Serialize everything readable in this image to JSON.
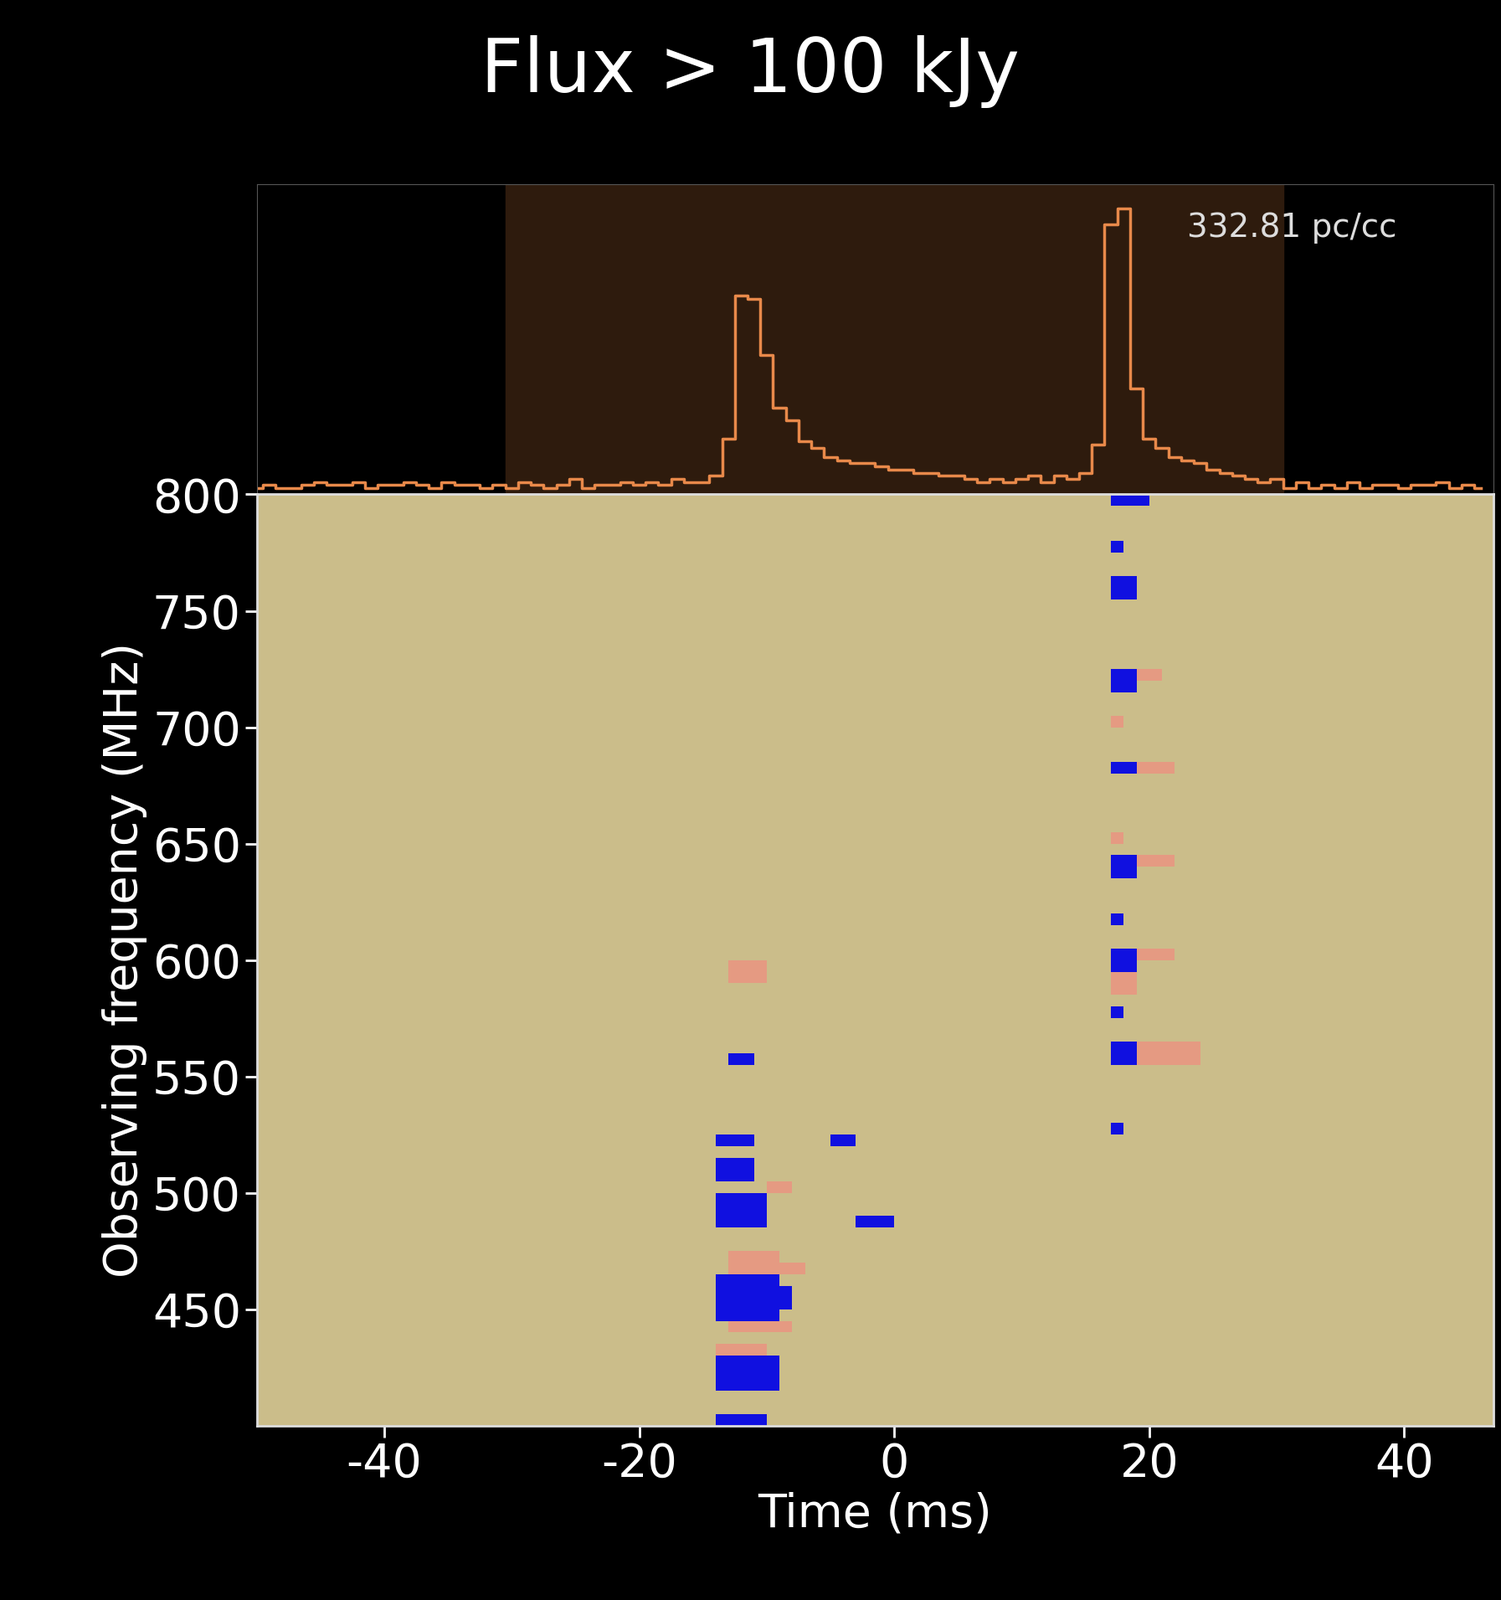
{
  "chart_data": [
    {
      "type": "step",
      "title": "Flux > 100 kJy",
      "annotation": "332.81 pc/cc",
      "x": [
        -50,
        -49,
        -48,
        -47,
        -46,
        -45,
        -44,
        -43,
        -42,
        -41,
        -40,
        -39,
        -38,
        -37,
        -36,
        -35,
        -34,
        -33,
        -32,
        -31,
        -30,
        -29,
        -28,
        -27,
        -26,
        -25,
        -24,
        -23,
        -22,
        -21,
        -20,
        -19,
        -18,
        -17,
        -16,
        -15,
        -14,
        -13,
        -12,
        -11,
        -10,
        -9,
        -8,
        -7,
        -6,
        -5,
        -4,
        -3,
        -2,
        -1,
        0,
        1,
        2,
        3,
        4,
        5,
        6,
        7,
        8,
        9,
        10,
        11,
        12,
        13,
        14,
        15,
        16,
        17,
        18,
        19,
        20,
        21,
        22,
        23,
        24,
        25,
        26,
        27,
        28,
        29,
        30,
        31,
        32,
        33,
        34,
        35,
        36,
        37,
        38,
        39,
        40,
        41,
        42,
        43,
        44,
        45,
        46
      ],
      "values": [
        0.02,
        0.03,
        0.02,
        0.02,
        0.03,
        0.04,
        0.03,
        0.03,
        0.04,
        0.02,
        0.03,
        0.03,
        0.04,
        0.03,
        0.02,
        0.04,
        0.03,
        0.03,
        0.02,
        0.03,
        0.02,
        0.04,
        0.03,
        0.02,
        0.03,
        0.05,
        0.02,
        0.03,
        0.03,
        0.04,
        0.03,
        0.04,
        0.03,
        0.05,
        0.04,
        0.04,
        0.06,
        0.18,
        0.64,
        0.63,
        0.45,
        0.28,
        0.24,
        0.17,
        0.15,
        0.12,
        0.11,
        0.1,
        0.1,
        0.09,
        0.08,
        0.08,
        0.07,
        0.07,
        0.06,
        0.06,
        0.05,
        0.04,
        0.05,
        0.04,
        0.05,
        0.06,
        0.04,
        0.06,
        0.05,
        0.07,
        0.16,
        0.87,
        0.92,
        0.34,
        0.18,
        0.15,
        0.12,
        0.11,
        0.1,
        0.08,
        0.07,
        0.06,
        0.05,
        0.04,
        0.05,
        0.02,
        0.04,
        0.02,
        0.03,
        0.02,
        0.04,
        0.02,
        0.03,
        0.03,
        0.02,
        0.03,
        0.03,
        0.04,
        0.02,
        0.03,
        0.02
      ],
      "xlim": [
        -50,
        47
      ],
      "ylim": [
        0,
        1
      ],
      "window": [
        -30.5,
        30.5
      ],
      "tick_labels": false,
      "color": "#e8894a"
    },
    {
      "type": "heatmap",
      "xlabel": "Time (ms)",
      "ylabel": "Observing frequency (MHz)",
      "xlim": [
        -50,
        47
      ],
      "ylim": [
        400,
        800
      ],
      "xticks": [
        -40,
        -20,
        0,
        20,
        40
      ],
      "yticks": [
        450,
        500,
        550,
        600,
        650,
        700,
        750,
        800
      ],
      "time_step": 1,
      "freq_step": 5,
      "color_range": [
        0,
        1
      ],
      "cells": [
        [
          400,
          -14,
          -11,
          1.0
        ],
        [
          415,
          -14,
          -10,
          1.0
        ],
        [
          420,
          -14,
          -10,
          1.0
        ],
        [
          425,
          -14,
          -10,
          1.0
        ],
        [
          430,
          -14,
          -11,
          0.6
        ],
        [
          440,
          -13,
          -9,
          0.6
        ],
        [
          445,
          -14,
          -10,
          1.0
        ],
        [
          450,
          -14,
          -9,
          1.0
        ],
        [
          455,
          -14,
          -9,
          1.0
        ],
        [
          460,
          -14,
          -10,
          1.0
        ],
        [
          465,
          -13,
          -8,
          0.6
        ],
        [
          470,
          -13,
          -10,
          0.6
        ],
        [
          485,
          -14,
          -11,
          1.0
        ],
        [
          490,
          -14,
          -11,
          1.0
        ],
        [
          495,
          -14,
          -11,
          1.0
        ],
        [
          500,
          -10,
          -9,
          0.6
        ],
        [
          505,
          -14,
          -12,
          1.0
        ],
        [
          510,
          -14,
          -12,
          1.0
        ],
        [
          520,
          -14,
          -12,
          1.0
        ],
        [
          555,
          -13,
          -12,
          1.0
        ],
        [
          590,
          -13,
          -11,
          0.6
        ],
        [
          595,
          -13,
          -11,
          0.6
        ],
        [
          485,
          -3,
          -1,
          1.0
        ],
        [
          520,
          -5,
          -4,
          1.0
        ],
        [
          795,
          17,
          19,
          1.0
        ],
        [
          775,
          17,
          17,
          1.0
        ],
        [
          760,
          17,
          18,
          1.0
        ],
        [
          755,
          17,
          18,
          1.0
        ],
        [
          720,
          17,
          18,
          1.0
        ],
        [
          715,
          17,
          18,
          1.0
        ],
        [
          720,
          19,
          20,
          0.6
        ],
        [
          700,
          17,
          17,
          0.6
        ],
        [
          680,
          17,
          18,
          1.0
        ],
        [
          680,
          19,
          21,
          0.55
        ],
        [
          650,
          17,
          17,
          0.6
        ],
        [
          640,
          17,
          18,
          1.0
        ],
        [
          635,
          17,
          18,
          1.0
        ],
        [
          640,
          19,
          21,
          0.55
        ],
        [
          615,
          17,
          17,
          1.0
        ],
        [
          600,
          17,
          18,
          1.0
        ],
        [
          595,
          17,
          18,
          1.0
        ],
        [
          600,
          19,
          21,
          0.55
        ],
        [
          585,
          17,
          18,
          0.6
        ],
        [
          590,
          17,
          18,
          0.6
        ],
        [
          575,
          17,
          17,
          1.0
        ],
        [
          560,
          17,
          18,
          1.0
        ],
        [
          555,
          17,
          18,
          1.0
        ],
        [
          560,
          19,
          23,
          0.6
        ],
        [
          555,
          19,
          23,
          0.6
        ],
        [
          525,
          17,
          17,
          1.0
        ]
      ]
    }
  ]
}
